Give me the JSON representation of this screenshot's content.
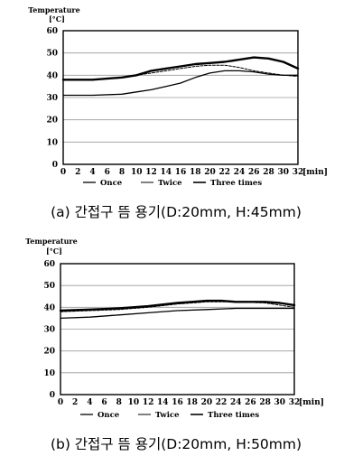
{
  "chart_data": [
    {
      "type": "line",
      "ylabel": "Temperature",
      "yunit": "[°C]",
      "xunit": "[min]",
      "caption": "(a) 간접구 뜸 용기(D:20mm, H:45mm)",
      "xlim": [
        0,
        32
      ],
      "ylim": [
        0,
        60
      ],
      "xticks": [
        0,
        2,
        4,
        6,
        8,
        10,
        12,
        14,
        16,
        18,
        20,
        22,
        24,
        26,
        28,
        30,
        32
      ],
      "yticks": [
        0,
        10,
        20,
        30,
        40,
        50,
        60
      ],
      "grid": true,
      "legend_position": "bottom",
      "series": [
        {
          "name": "Once",
          "x": [
            0,
            4,
            8,
            10,
            12,
            14,
            16,
            18,
            20,
            22,
            24,
            26,
            28,
            30,
            32
          ],
          "y": [
            31,
            31,
            31.5,
            32.5,
            33.5,
            35,
            36.5,
            39,
            41,
            42,
            42,
            41.5,
            40.5,
            40,
            40
          ]
        },
        {
          "name": "Twice",
          "x": [
            0,
            4,
            8,
            10,
            12,
            14,
            16,
            18,
            20,
            22,
            24,
            26,
            28,
            30,
            32
          ],
          "y": [
            38,
            38,
            39,
            40,
            41,
            42,
            43,
            44,
            44.5,
            44.5,
            43.5,
            42,
            41,
            40,
            39.5
          ]
        },
        {
          "name": "Three times",
          "x": [
            0,
            4,
            8,
            10,
            12,
            14,
            16,
            18,
            20,
            22,
            24,
            26,
            28,
            30,
            32
          ],
          "y": [
            38,
            38,
            39,
            40,
            42,
            43,
            44,
            45,
            45.5,
            46,
            47,
            48,
            47.5,
            46,
            43
          ]
        }
      ]
    },
    {
      "type": "line",
      "ylabel": "Temperature",
      "yunit": "[°C]",
      "xunit": "[min]",
      "caption": "(b) 간접구 뜸 용기(D:20mm, H:50mm)",
      "xlim": [
        0,
        32
      ],
      "ylim": [
        0,
        60
      ],
      "xticks": [
        0,
        2,
        4,
        6,
        8,
        10,
        12,
        14,
        16,
        18,
        20,
        22,
        24,
        26,
        28,
        30,
        32
      ],
      "yticks": [
        0,
        10,
        20,
        30,
        40,
        50,
        60
      ],
      "grid": true,
      "legend_position": "bottom",
      "series": [
        {
          "name": "Once",
          "x": [
            0,
            4,
            8,
            12,
            16,
            20,
            24,
            28,
            30,
            32
          ],
          "y": [
            35,
            35.5,
            36.5,
            37.5,
            38.5,
            39,
            39.5,
            39.5,
            39.5,
            39.5
          ]
        },
        {
          "name": "Twice",
          "x": [
            0,
            4,
            8,
            12,
            16,
            18,
            20,
            22,
            24,
            28,
            30,
            32
          ],
          "y": [
            38,
            38.5,
            39,
            40,
            41.5,
            42,
            42.5,
            42.5,
            42.5,
            42,
            41,
            40
          ]
        },
        {
          "name": "Three times",
          "x": [
            0,
            4,
            8,
            12,
            16,
            18,
            20,
            22,
            24,
            28,
            30,
            32
          ],
          "y": [
            38.5,
            39,
            39.5,
            40.5,
            42,
            42.5,
            43,
            43,
            42.5,
            42.5,
            42,
            41
          ]
        }
      ]
    }
  ],
  "legend": {
    "once_label": "Once",
    "twice_label": "Twice",
    "three_label": "Three times"
  }
}
